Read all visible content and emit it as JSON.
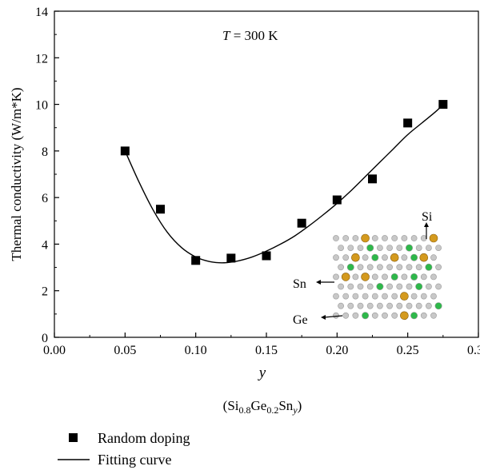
{
  "chart_data": {
    "type": "scatter",
    "annotation": "T = 300 K",
    "annotation_italic": "T",
    "annotation_rest": " = 300 K",
    "xlabel": "y",
    "xlabel_sub": {
      "open": "(Si",
      "si_sub": "0.8",
      "ge": "Ge",
      "ge_sub": "0.2",
      "sn": "Sn",
      "sn_sub": "y",
      "close": ")"
    },
    "ylabel": "Thermal conductivity (W/m*K)",
    "xlim": [
      0.0,
      0.3
    ],
    "ylim": [
      0,
      14
    ],
    "xticks": [
      "0.00",
      "0.05",
      "0.10",
      "0.15",
      "0.20",
      "0.25",
      "0.30"
    ],
    "yticks": [
      "0",
      "2",
      "4",
      "6",
      "8",
      "10",
      "12",
      "14"
    ],
    "series": [
      {
        "name": "Random doping",
        "marker": "square",
        "color": "#000000",
        "x": [
          0.05,
          0.075,
          0.1,
          0.125,
          0.15,
          0.175,
          0.2,
          0.225,
          0.25,
          0.275
        ],
        "y": [
          8.0,
          5.5,
          3.3,
          3.4,
          3.5,
          4.9,
          5.9,
          6.8,
          9.2,
          10.0
        ]
      },
      {
        "name": "Fitting curve",
        "marker": "line",
        "color": "#000000",
        "x": [
          0.05,
          0.06,
          0.07,
          0.08,
          0.09,
          0.1,
          0.11,
          0.12,
          0.13,
          0.14,
          0.15,
          0.16,
          0.17,
          0.18,
          0.19,
          0.2,
          0.21,
          0.22,
          0.23,
          0.24,
          0.25,
          0.26,
          0.27,
          0.275
        ],
        "y": [
          8.0,
          6.65,
          5.45,
          4.5,
          3.85,
          3.45,
          3.25,
          3.2,
          3.28,
          3.45,
          3.7,
          4.0,
          4.35,
          4.78,
          5.25,
          5.75,
          6.3,
          6.9,
          7.5,
          8.1,
          8.7,
          9.2,
          9.7,
          10.0
        ]
      }
    ],
    "legend_position": "bottom-left",
    "inset": {
      "labels": {
        "si": "Si",
        "sn": "Sn",
        "ge": "Ge"
      },
      "colors": {
        "si": "#c8c8c8",
        "ge": "#2eb84a",
        "sn": "#d49a1e"
      },
      "rows": [
        "sssnssssssn",
        "sssgsssgsss",
        "ssnsgsnsgns",
        "sgsssssssgs",
        "snsnssgsgss",
        "ssssgsssgss",
        "sssssssnsss",
        "ssssssssssg",
        "sssgsssngss"
      ]
    }
  }
}
